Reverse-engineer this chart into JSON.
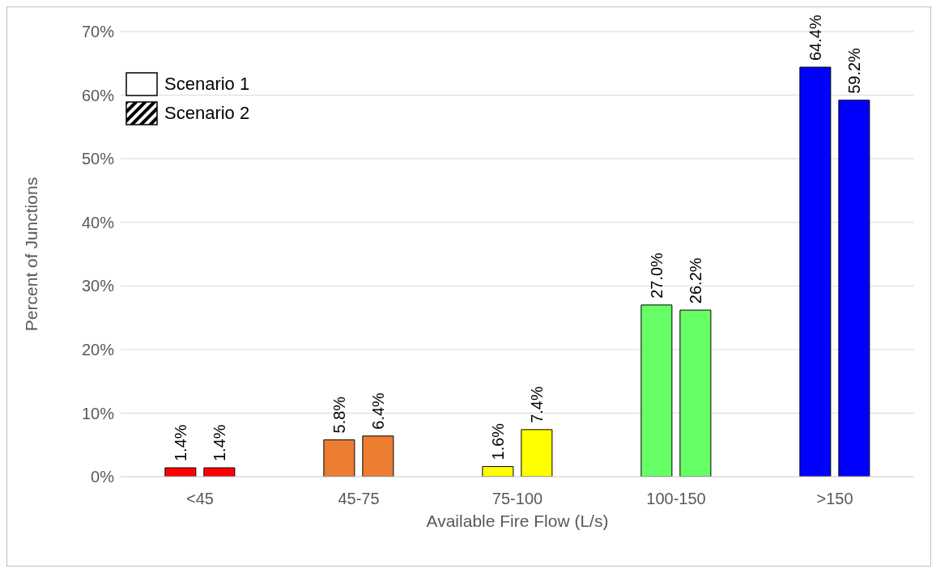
{
  "chart_data": {
    "type": "bar",
    "xlabel": "Available Fire Flow (L/s)",
    "ylabel": "Percent of Junctions",
    "categories": [
      "<45",
      "45-75",
      "75-100",
      "100-150",
      ">150"
    ],
    "series": [
      {
        "name": "Scenario 1",
        "color": "#ffffff",
        "colors": [
          "#ff0000",
          "#ed7d31",
          "#ffff00",
          "#66ff66",
          "#0000ff"
        ],
        "values": [
          1.4,
          5.8,
          1.6,
          27.0,
          64.4
        ],
        "value_labels": [
          "1.4%",
          "5.8%",
          "1.6%",
          "27.0%",
          "64.4%"
        ]
      },
      {
        "name": "Scenario 2",
        "color": "#000000",
        "colors": [
          "#ff0000",
          "#ed7d31",
          "#ffff00",
          "#66ff66",
          "#0000ff"
        ],
        "values": [
          1.4,
          6.4,
          7.4,
          26.2,
          59.2
        ],
        "value_labels": [
          "1.4%",
          "6.4%",
          "7.4%",
          "26.2%",
          "59.2%"
        ]
      }
    ],
    "ylim": [
      0,
      70
    ],
    "yticks": [
      {
        "value": 0,
        "label": "0%"
      },
      {
        "value": 10,
        "label": "10%"
      },
      {
        "value": 20,
        "label": "20%"
      },
      {
        "value": 30,
        "label": "30%"
      },
      {
        "value": 40,
        "label": "40%"
      },
      {
        "value": 50,
        "label": "50%"
      },
      {
        "value": 60,
        "label": "60%"
      },
      {
        "value": 70,
        "label": "70%"
      }
    ],
    "grid": "y",
    "legend": "top left"
  }
}
